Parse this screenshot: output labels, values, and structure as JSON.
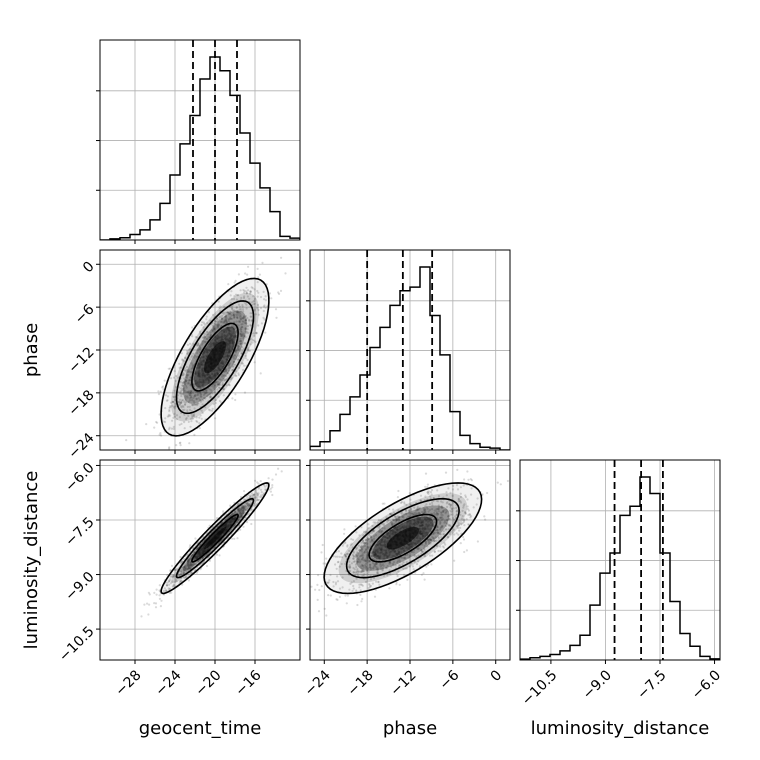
{
  "chart_data": {
    "type": "corner",
    "parameters": [
      {
        "name": "geocent_time",
        "label": "geocent_time",
        "range": [
          -31.5,
          -11.5
        ],
        "ticks": [
          -28,
          -24,
          -20,
          -16
        ],
        "tick_labels": [
          "−28",
          "−24",
          "−20",
          "−16"
        ],
        "quantiles": [
          -22.2,
          -20.0,
          -17.8
        ],
        "hist_edges": [
          -31.5,
          -30.5,
          -29.5,
          -28.5,
          -27.5,
          -26.5,
          -25.5,
          -24.5,
          -23.5,
          -22.5,
          -21.5,
          -20.5,
          -19.5,
          -18.5,
          -17.5,
          -16.5,
          -15.5,
          -14.5,
          -13.5,
          -12.5,
          -11.5
        ],
        "hist_counts": [
          0,
          0.006,
          0.012,
          0.03,
          0.055,
          0.11,
          0.2,
          0.355,
          0.525,
          0.68,
          0.88,
          1.0,
          0.925,
          0.79,
          0.585,
          0.42,
          0.285,
          0.155,
          0.02,
          0.01
        ]
      },
      {
        "name": "phase",
        "label": "phase",
        "range": [
          -26.0,
          2.0
        ],
        "ticks": [
          -24,
          -18,
          -12,
          -6,
          0
        ],
        "tick_labels": [
          "−24",
          "−18",
          "−12",
          "−6",
          "0"
        ],
        "quantiles": [
          -18.0,
          -13.0,
          -8.9
        ],
        "hist_edges": [
          -26.0,
          -24.6,
          -23.2,
          -21.8,
          -20.4,
          -19.0,
          -17.6,
          -16.2,
          -14.8,
          -13.4,
          -12.0,
          -10.6,
          -9.2,
          -7.8,
          -6.4,
          -5.0,
          -3.6,
          -2.2,
          -0.8,
          0.6,
          2.0
        ],
        "hist_counts": [
          0.02,
          0.045,
          0.105,
          0.195,
          0.29,
          0.41,
          0.56,
          0.67,
          0.79,
          0.87,
          0.89,
          1.0,
          0.735,
          0.52,
          0.21,
          0.08,
          0.035,
          0.015,
          0.01,
          0.0
        ]
      },
      {
        "name": "luminosity_distance",
        "label": "luminosity_distance",
        "range": [
          -11.35,
          -5.85
        ],
        "ticks": [
          -10.5,
          -9.0,
          -7.5,
          -6.0
        ],
        "tick_labels": [
          "−10.5",
          "−9.0",
          "−7.5",
          "−6.0"
        ],
        "quantiles": [
          -8.75,
          -8.02,
          -7.42
        ],
        "hist_edges": [
          -11.35,
          -11.075,
          -10.8,
          -10.525,
          -10.25,
          -9.975,
          -9.7,
          -9.425,
          -9.15,
          -8.875,
          -8.6,
          -8.325,
          -8.05,
          -7.775,
          -7.5,
          -7.225,
          -6.95,
          -6.675,
          -6.4,
          -6.125,
          -5.85
        ],
        "hist_counts": [
          0.005,
          0.012,
          0.02,
          0.03,
          0.05,
          0.08,
          0.135,
          0.3,
          0.475,
          0.585,
          0.79,
          0.84,
          1.0,
          0.91,
          0.585,
          0.32,
          0.145,
          0.075,
          0.02,
          0.006
        ]
      }
    ],
    "pairs": [
      {
        "x": "geocent_time",
        "y": "phase",
        "mean": [
          -20.0,
          -13.0
        ],
        "sd": [
          2.2,
          4.5
        ],
        "corr": 0.72
      },
      {
        "x": "geocent_time",
        "y": "luminosity_distance",
        "mean": [
          -20.0,
          -8.0
        ],
        "sd": [
          2.2,
          0.62
        ],
        "corr": 0.96
      },
      {
        "x": "phase",
        "y": "luminosity_distance",
        "mean": [
          -13.0,
          -8.0
        ],
        "sd": [
          4.5,
          0.62
        ],
        "corr": 0.7
      }
    ],
    "colors": {
      "line": "#000000",
      "grid": "#b0b0b0",
      "scatter": "#555555",
      "density": "#000000"
    },
    "grid": true
  }
}
